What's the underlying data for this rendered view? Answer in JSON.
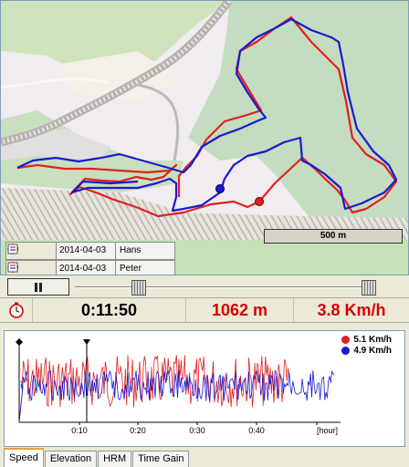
{
  "athletes": [
    {
      "date": "2014-04-03",
      "name": "Hans",
      "color": "#1a1ad0"
    },
    {
      "date": "2014-04-03",
      "name": "Peter",
      "color": "#e02020"
    }
  ],
  "map": {
    "scale_label": "500 m",
    "track_red": "#e02020",
    "track_blue": "#1a1ad0"
  },
  "playback": {
    "progress": 0.22,
    "end": 1.0,
    "pause_icon": "pause-icon"
  },
  "readouts": {
    "clock_icon": "stopwatch-icon",
    "time": "0:11:50",
    "distance": "1062 m",
    "speed": "3.8 Km/h"
  },
  "chart_data": {
    "type": "line",
    "x_ticks": [
      "0:10",
      "0:20",
      "0:30",
      "0:40",
      "[hour]"
    ],
    "cursor_time": "0:11:50",
    "series": [
      {
        "name": "5.1 Km/h",
        "color": "#e02020"
      },
      {
        "name": "4.9 Km/h",
        "color": "#1a1ad0"
      }
    ]
  },
  "tabs": [
    {
      "label": "Speed",
      "active": true
    },
    {
      "label": "Elevation",
      "active": false
    },
    {
      "label": "HRM",
      "active": false
    },
    {
      "label": "Time Gain",
      "active": false
    }
  ]
}
